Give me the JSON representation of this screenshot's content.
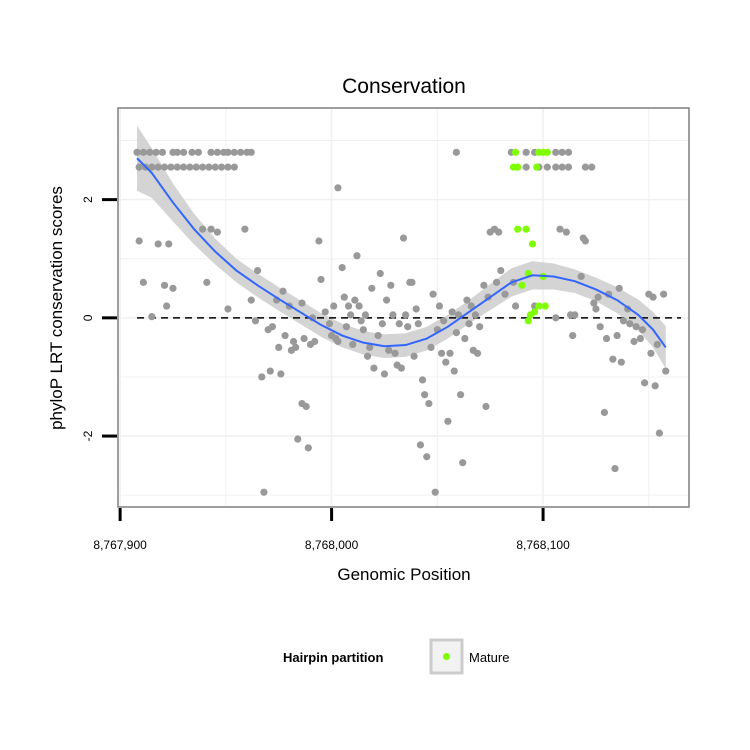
{
  "chart_data": {
    "type": "scatter",
    "title": "Conservation",
    "xlabel": "Genomic Position",
    "ylabel": "phyloP LRT conservation scores",
    "xlim": [
      8767899,
      8768169
    ],
    "ylim": [
      -3.2,
      3.55
    ],
    "x_ticks": [
      {
        "value": 8767900,
        "label": "8,767,900"
      },
      {
        "value": 8768000,
        "label": "8,768,000"
      },
      {
        "value": 8768100,
        "label": "8,768,100"
      }
    ],
    "y_ticks": [
      {
        "value": -2,
        "label": "-2"
      },
      {
        "value": 0,
        "label": "0"
      },
      {
        "value": 2,
        "label": "2"
      }
    ],
    "reference_line": {
      "y": 0,
      "style": "dashed"
    },
    "grid": true,
    "legend": {
      "position": "bottom",
      "title": "Hairpin partition",
      "entries": [
        {
          "label": "Mature",
          "color": "#7fff00"
        }
      ]
    },
    "colors": {
      "points": "#999999",
      "mature": "#7fff00",
      "smooth_line": "#3366ff",
      "confidence_band": "#cccccc"
    },
    "series": [
      {
        "points": [
          [
            8767908,
            2.8
          ],
          [
            8767911,
            2.8
          ],
          [
            8767914,
            2.8
          ],
          [
            8767917,
            2.8
          ],
          [
            8767920,
            2.8
          ],
          [
            8767925,
            2.8
          ],
          [
            8767927,
            2.8
          ],
          [
            8767930,
            2.8
          ],
          [
            8767934,
            2.8
          ],
          [
            8767937,
            2.8
          ],
          [
            8767943,
            2.8
          ],
          [
            8767946,
            2.8
          ],
          [
            8767949,
            2.8
          ],
          [
            8767951,
            2.8
          ],
          [
            8767954,
            2.8
          ],
          [
            8767957,
            2.8
          ],
          [
            8767960,
            2.8
          ],
          [
            8767962,
            2.8
          ],
          [
            8767909,
            2.55
          ],
          [
            8767912,
            2.55
          ],
          [
            8767915,
            2.55
          ],
          [
            8767918,
            2.55
          ],
          [
            8767921,
            2.55
          ],
          [
            8767924,
            2.55
          ],
          [
            8767927,
            2.55
          ],
          [
            8767930,
            2.55
          ],
          [
            8767933,
            2.55
          ],
          [
            8767936,
            2.55
          ],
          [
            8767939,
            2.55
          ],
          [
            8767942,
            2.55
          ],
          [
            8767945,
            2.55
          ],
          [
            8767948,
            2.55
          ],
          [
            8767951,
            2.55
          ],
          [
            8767954,
            2.55
          ],
          [
            8768059,
            2.8
          ],
          [
            8768085,
            2.8
          ],
          [
            8768092,
            2.8
          ],
          [
            8768096,
            2.8
          ],
          [
            8768106,
            2.8
          ],
          [
            8768109,
            2.8
          ],
          [
            8768112,
            2.8
          ],
          [
            8768092,
            2.55
          ],
          [
            8768098,
            2.55
          ],
          [
            8768102,
            2.55
          ],
          [
            8768106,
            2.55
          ],
          [
            8768109,
            2.55
          ],
          [
            8768112,
            2.55
          ],
          [
            8768120,
            2.55
          ],
          [
            8768123,
            2.55
          ],
          [
            8768003,
            2.2
          ],
          [
            8767909,
            1.3
          ],
          [
            8767911,
            0.6
          ],
          [
            8767915,
            0.02
          ],
          [
            8767918,
            1.25
          ],
          [
            8767921,
            0.55
          ],
          [
            8767923,
            1.25
          ],
          [
            8767922,
            0.2
          ],
          [
            8767925,
            0.5
          ],
          [
            8767939,
            1.5
          ],
          [
            8767941,
            0.6
          ],
          [
            8767943,
            1.5
          ],
          [
            8767946,
            1.45
          ],
          [
            8767951,
            0.15
          ],
          [
            8767959,
            1.5
          ],
          [
            8767962,
            0.3
          ],
          [
            8767964,
            -0.05
          ],
          [
            8767965,
            0.8
          ],
          [
            8767967,
            -1.0
          ],
          [
            8767968,
            -2.95
          ],
          [
            8767970,
            -0.2
          ],
          [
            8767971,
            -0.9
          ],
          [
            8767972,
            -0.15
          ],
          [
            8767974,
            0.3
          ],
          [
            8767975,
            -0.5
          ],
          [
            8767976,
            -0.95
          ],
          [
            8767977,
            0.45
          ],
          [
            8767978,
            -0.3
          ],
          [
            8767980,
            0.2
          ],
          [
            8767981,
            -0.55
          ],
          [
            8767982,
            -0.4
          ],
          [
            8767983,
            -0.5
          ],
          [
            8767984,
            -2.05
          ],
          [
            8767986,
            -1.45
          ],
          [
            8767986,
            0.25
          ],
          [
            8767987,
            -0.35
          ],
          [
            8767988,
            -1.5
          ],
          [
            8767989,
            -2.2
          ],
          [
            8767990,
            -0.45
          ],
          [
            8767991,
            0.0
          ],
          [
            8767992,
            -0.4
          ],
          [
            8767994,
            1.3
          ],
          [
            8767995,
            0.65
          ],
          [
            8767997,
            0.1
          ],
          [
            8767999,
            -0.1
          ],
          [
            8768000,
            -0.3
          ],
          [
            8768001,
            0.2
          ],
          [
            8768002,
            -0.35
          ],
          [
            8768003,
            -0.4
          ],
          [
            8768005,
            0.85
          ],
          [
            8768006,
            0.35
          ],
          [
            8768007,
            -0.15
          ],
          [
            8768008,
            0.2
          ],
          [
            8768009,
            0.05
          ],
          [
            8768010,
            -0.45
          ],
          [
            8768011,
            0.3
          ],
          [
            8768012,
            1.05
          ],
          [
            8768013,
            0.2
          ],
          [
            8768014,
            -0.05
          ],
          [
            8768015,
            -0.2
          ],
          [
            8768016,
            0.05
          ],
          [
            8768017,
            -0.65
          ],
          [
            8768018,
            -0.5
          ],
          [
            8768019,
            0.5
          ],
          [
            8768020,
            -0.85
          ],
          [
            8768022,
            -0.3
          ],
          [
            8768023,
            0.75
          ],
          [
            8768024,
            -0.1
          ],
          [
            8768025,
            -0.95
          ],
          [
            8768026,
            0.3
          ],
          [
            8768027,
            -0.55
          ],
          [
            8768028,
            0.55
          ],
          [
            8768029,
            0.05
          ],
          [
            8768030,
            -0.6
          ],
          [
            8768031,
            -0.8
          ],
          [
            8768032,
            -0.1
          ],
          [
            8768033,
            -0.85
          ],
          [
            8768034,
            1.35
          ],
          [
            8768035,
            0.05
          ],
          [
            8768036,
            -0.15
          ],
          [
            8768037,
            0.6
          ],
          [
            8768038,
            0.6
          ],
          [
            8768039,
            -0.65
          ],
          [
            8768040,
            0.15
          ],
          [
            8768041,
            -0.1
          ],
          [
            8768042,
            -2.15
          ],
          [
            8768043,
            -1.05
          ],
          [
            8768044,
            -1.3
          ],
          [
            8768045,
            -2.35
          ],
          [
            8768046,
            -1.45
          ],
          [
            8768047,
            -0.5
          ],
          [
            8768048,
            0.4
          ],
          [
            8768049,
            -2.95
          ],
          [
            8768050,
            -0.2
          ],
          [
            8768051,
            0.2
          ],
          [
            8768052,
            -0.6
          ],
          [
            8768053,
            -0.05
          ],
          [
            8768054,
            -0.75
          ],
          [
            8768055,
            -1.75
          ],
          [
            8768056,
            -0.6
          ],
          [
            8768057,
            0.1
          ],
          [
            8768058,
            -0.9
          ],
          [
            8768059,
            -0.25
          ],
          [
            8768060,
            0.05
          ],
          [
            8768061,
            -1.3
          ],
          [
            8768062,
            -2.45
          ],
          [
            8768063,
            -0.35
          ],
          [
            8768064,
            0.3
          ],
          [
            8768065,
            -0.1
          ],
          [
            8768066,
            0.2
          ],
          [
            8768067,
            -0.55
          ],
          [
            8768068,
            0.05
          ],
          [
            8768069,
            -0.6
          ],
          [
            8768070,
            -0.15
          ],
          [
            8768072,
            0.55
          ],
          [
            8768073,
            -1.5
          ],
          [
            8768074,
            0.35
          ],
          [
            8768075,
            1.45
          ],
          [
            8768077,
            1.5
          ],
          [
            8768078,
            0.6
          ],
          [
            8768079,
            1.45
          ],
          [
            8768080,
            0.8
          ],
          [
            8768082,
            0.4
          ],
          [
            8768086,
            0.6
          ],
          [
            8768087,
            0.2
          ],
          [
            8768096,
            0.2
          ],
          [
            8768106,
            0.0
          ],
          [
            8768108,
            1.5
          ],
          [
            8768111,
            1.45
          ],
          [
            8768113,
            0.05
          ],
          [
            8768114,
            -0.3
          ],
          [
            8768115,
            0.05
          ],
          [
            8768118,
            0.7
          ],
          [
            8768119,
            1.35
          ],
          [
            8768120,
            1.3
          ],
          [
            8768124,
            0.25
          ],
          [
            8768125,
            0.15
          ],
          [
            8768126,
            0.35
          ],
          [
            8768127,
            -0.15
          ],
          [
            8768129,
            -1.6
          ],
          [
            8768130,
            -0.35
          ],
          [
            8768131,
            0.4
          ],
          [
            8768133,
            -0.7
          ],
          [
            8768134,
            -2.55
          ],
          [
            8768135,
            -0.3
          ],
          [
            8768136,
            0.5
          ],
          [
            8768137,
            -0.75
          ],
          [
            8768138,
            -0.05
          ],
          [
            8768140,
            0.15
          ],
          [
            8768141,
            -0.1
          ],
          [
            8768143,
            -0.4
          ],
          [
            8768144,
            -0.15
          ],
          [
            8768146,
            -0.35
          ],
          [
            8768147,
            -0.2
          ],
          [
            8768148,
            -1.1
          ],
          [
            8768150,
            0.4
          ],
          [
            8768151,
            -0.6
          ],
          [
            8768152,
            0.35
          ],
          [
            8768153,
            -1.15
          ],
          [
            8768154,
            -0.45
          ],
          [
            8768155,
            -1.95
          ],
          [
            8768157,
            0.4
          ],
          [
            8768158,
            -0.9
          ]
        ]
      },
      {
        "name": "Mature",
        "points": [
          [
            8768087,
            2.8
          ],
          [
            8768098,
            2.8
          ],
          [
            8768100,
            2.8
          ],
          [
            8768102,
            2.8
          ],
          [
            8768086,
            2.55
          ],
          [
            8768088,
            2.55
          ],
          [
            8768097,
            2.55
          ],
          [
            8768088,
            1.5
          ],
          [
            8768092,
            1.5
          ],
          [
            8768095,
            1.25
          ],
          [
            8768093,
            0.75
          ],
          [
            8768090,
            0.55
          ],
          [
            8768093,
            -0.05
          ],
          [
            8768094,
            0.05
          ],
          [
            8768096,
            0.1
          ],
          [
            8768098,
            0.2
          ],
          [
            8768100,
            0.7
          ],
          [
            8768101,
            0.2
          ]
        ]
      }
    ],
    "smooth_fit": [
      [
        8767908,
        2.7
      ],
      [
        8767915,
        2.45
      ],
      [
        8767925,
        1.95
      ],
      [
        8767935,
        1.5
      ],
      [
        8767945,
        1.12
      ],
      [
        8767955,
        0.8
      ],
      [
        8767965,
        0.55
      ],
      [
        8767975,
        0.32
      ],
      [
        8767985,
        0.1
      ],
      [
        8767995,
        -0.12
      ],
      [
        8768005,
        -0.3
      ],
      [
        8768015,
        -0.42
      ],
      [
        8768025,
        -0.48
      ],
      [
        8768035,
        -0.46
      ],
      [
        8768045,
        -0.35
      ],
      [
        8768055,
        -0.15
      ],
      [
        8768065,
        0.1
      ],
      [
        8768075,
        0.35
      ],
      [
        8768085,
        0.6
      ],
      [
        8768095,
        0.72
      ],
      [
        8768105,
        0.7
      ],
      [
        8768115,
        0.62
      ],
      [
        8768125,
        0.48
      ],
      [
        8768135,
        0.3
      ],
      [
        8768145,
        0.05
      ],
      [
        8768152,
        -0.2
      ],
      [
        8768158,
        -0.5
      ]
    ],
    "smooth_band": [
      0.55,
      0.42,
      0.32,
      0.26,
      0.22,
      0.2,
      0.2,
      0.2,
      0.2,
      0.2,
      0.2,
      0.2,
      0.2,
      0.2,
      0.2,
      0.2,
      0.2,
      0.22,
      0.24,
      0.24,
      0.22,
      0.2,
      0.2,
      0.22,
      0.26,
      0.3,
      0.36
    ]
  }
}
